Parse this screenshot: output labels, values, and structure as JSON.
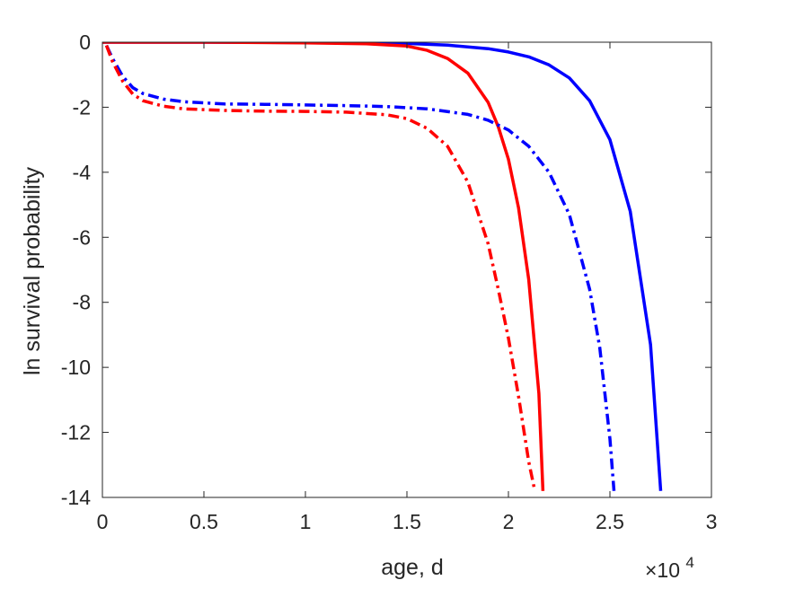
{
  "chart_data": {
    "type": "line",
    "title": "",
    "xlabel": "age, d",
    "ylabel": "ln survival probability",
    "x_multiplier_label": {
      "base": "×10",
      "exponent": "4"
    },
    "xlim": [
      0,
      3
    ],
    "ylim": [
      -14,
      0
    ],
    "xticks": [
      0,
      0.5,
      1,
      1.5,
      2,
      2.5,
      3
    ],
    "xtick_labels": [
      "0",
      "0.5",
      "1",
      "1.5",
      "2",
      "2.5",
      "3"
    ],
    "yticks": [
      0,
      -2,
      -4,
      -6,
      -8,
      -10,
      -12,
      -14
    ],
    "ytick_labels": [
      "0",
      "-2",
      "-4",
      "-6",
      "-8",
      "-10",
      "-12",
      "-14"
    ],
    "grid": false,
    "legend": "none",
    "series": [
      {
        "color": "#0000ff",
        "style": "solid",
        "x": [
          0,
          0.5,
          1.0,
          1.3,
          1.5,
          1.7,
          1.9,
          2.0,
          2.1,
          2.2,
          2.3,
          2.4,
          2.5,
          2.6,
          2.7,
          2.75
        ],
        "y": [
          0,
          0,
          -0.01,
          -0.02,
          -0.04,
          -0.09,
          -0.2,
          -0.3,
          -0.45,
          -0.7,
          -1.1,
          -1.8,
          -3.0,
          -5.2,
          -9.3,
          -13.8
        ]
      },
      {
        "color": "#ff0000",
        "style": "solid",
        "x": [
          0,
          0.5,
          1.0,
          1.3,
          1.5,
          1.6,
          1.7,
          1.8,
          1.9,
          1.95,
          2.0,
          2.05,
          2.1,
          2.15,
          2.17
        ],
        "y": [
          0,
          0,
          -0.02,
          -0.05,
          -0.12,
          -0.25,
          -0.5,
          -0.95,
          -1.85,
          -2.6,
          -3.6,
          -5.1,
          -7.3,
          -10.8,
          -13.8
        ]
      },
      {
        "color": "#0000ff",
        "style": "dashdot",
        "x": [
          0.02,
          0.05,
          0.1,
          0.15,
          0.2,
          0.3,
          0.4,
          0.6,
          0.8,
          1.0,
          1.2,
          1.4,
          1.6,
          1.8,
          1.9,
          2.0,
          2.1,
          2.2,
          2.3,
          2.4,
          2.45,
          2.5,
          2.52
        ],
        "y": [
          -0.1,
          -0.5,
          -1.05,
          -1.4,
          -1.58,
          -1.75,
          -1.83,
          -1.9,
          -1.91,
          -1.93,
          -1.95,
          -1.98,
          -2.05,
          -2.22,
          -2.4,
          -2.7,
          -3.2,
          -4.0,
          -5.3,
          -7.6,
          -9.4,
          -12.2,
          -13.8
        ]
      },
      {
        "color": "#ff0000",
        "style": "dashdot",
        "x": [
          0.02,
          0.05,
          0.1,
          0.15,
          0.2,
          0.3,
          0.4,
          0.6,
          0.8,
          1.0,
          1.2,
          1.4,
          1.5,
          1.6,
          1.7,
          1.8,
          1.9,
          1.95,
          2.0,
          2.05,
          2.1,
          2.13
        ],
        "y": [
          -0.1,
          -0.6,
          -1.2,
          -1.6,
          -1.8,
          -1.97,
          -2.05,
          -2.1,
          -2.12,
          -2.13,
          -2.15,
          -2.23,
          -2.35,
          -2.65,
          -3.2,
          -4.3,
          -6.2,
          -7.6,
          -9.1,
          -10.9,
          -12.9,
          -13.8
        ]
      }
    ]
  }
}
